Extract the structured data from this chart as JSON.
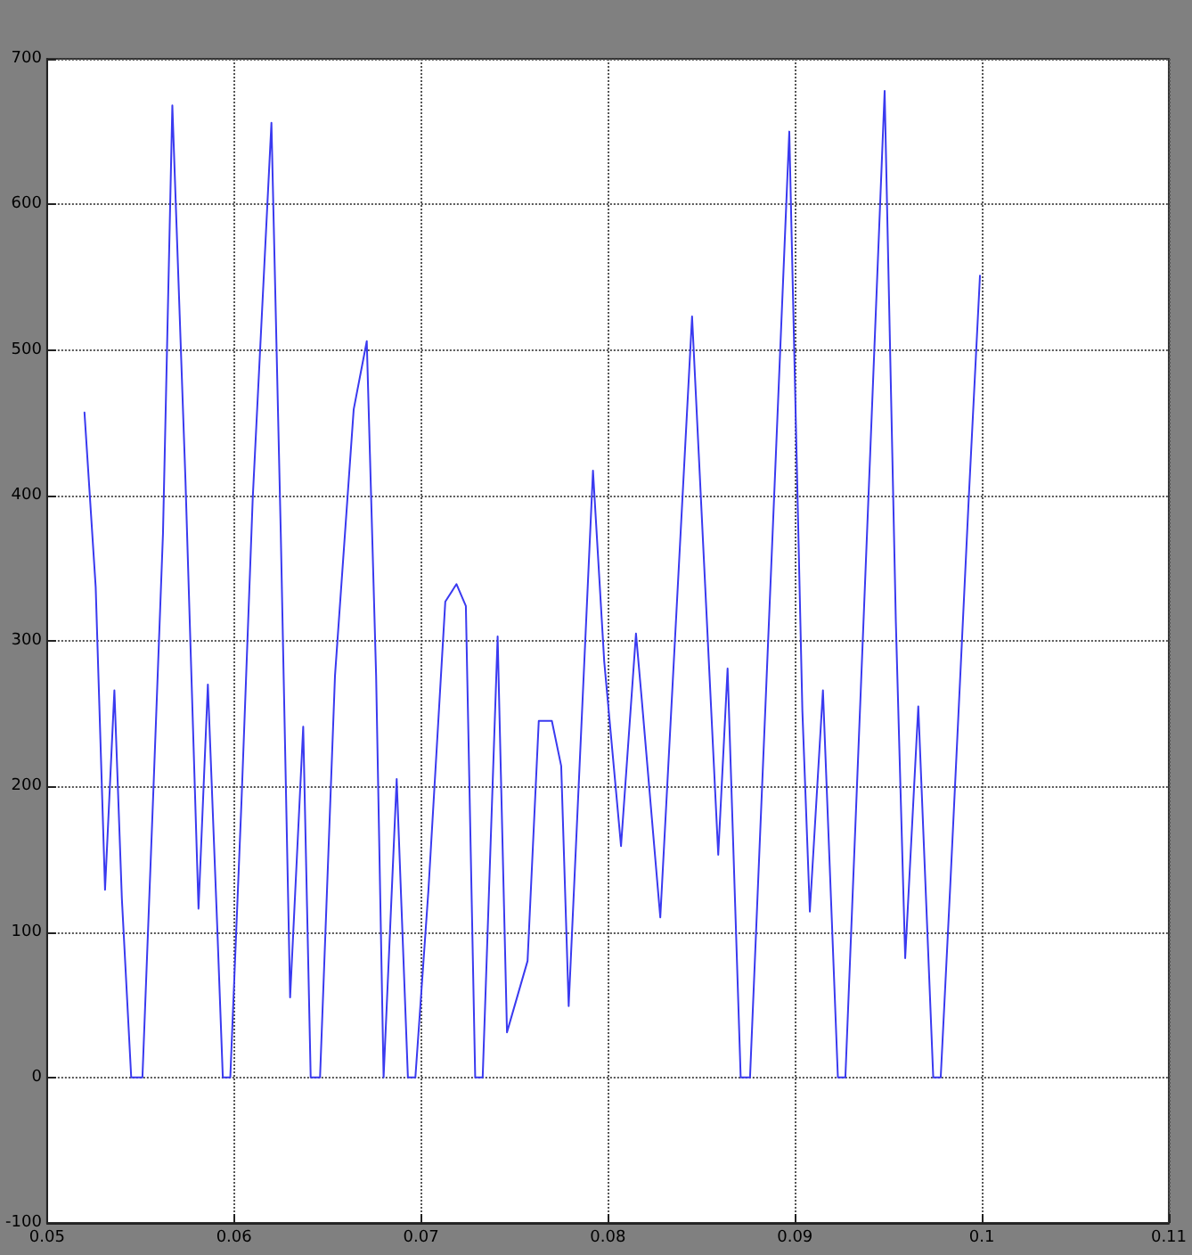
{
  "chart_data": {
    "type": "line",
    "xlim": [
      0.05,
      0.11
    ],
    "xticks": [
      0.05,
      0.06,
      0.07,
      0.08,
      0.09,
      0.1,
      0.11
    ],
    "ylim": [
      -100,
      700
    ],
    "yticks": [
      -100,
      0,
      100,
      200,
      300,
      400,
      500,
      600,
      700
    ],
    "grid": true,
    "marker": "none",
    "line_style": "solid",
    "series": [
      {
        "color": "#3a3af0",
        "x": [
          0.052,
          0.0526,
          0.0531,
          0.0536,
          0.054,
          0.0545,
          0.0551,
          0.0557,
          0.0562,
          0.0567,
          0.0574,
          0.0581,
          0.0586,
          0.0591,
          0.0594,
          0.0598,
          0.0604,
          0.061,
          0.062,
          0.0625,
          0.063,
          0.0637,
          0.0641,
          0.0646,
          0.0654,
          0.0664,
          0.0671,
          0.0676,
          0.068,
          0.0687,
          0.0693,
          0.0697,
          0.0704,
          0.0713,
          0.0719,
          0.0724,
          0.0729,
          0.0733,
          0.0741,
          0.0746,
          0.0757,
          0.0763,
          0.077,
          0.0775,
          0.0779,
          0.0792,
          0.0798,
          0.0807,
          0.0815,
          0.0818,
          0.0828,
          0.0845,
          0.0859,
          0.0864,
          0.0871,
          0.0876,
          0.0897,
          0.0904,
          0.0908,
          0.0915,
          0.0923,
          0.0927,
          0.0948,
          0.0954,
          0.0959,
          0.0966,
          0.0974,
          0.0978,
          0.0983,
          0.0993,
          0.0999
        ],
        "values": [
          457,
          337,
          129,
          266,
          123,
          0,
          0,
          202,
          374,
          668,
          411,
          116,
          270,
          104,
          0,
          0,
          190,
          398,
          656,
          374,
          55,
          241,
          0,
          0,
          276,
          459,
          506,
          276,
          0,
          205,
          0,
          0,
          129,
          327,
          339,
          324,
          0,
          0,
          303,
          31,
          80,
          245,
          245,
          214,
          49,
          417,
          286,
          159,
          305,
          261,
          110,
          523,
          153,
          281,
          0,
          0,
          650,
          252,
          114,
          266,
          0,
          0,
          678,
          313,
          82,
          255,
          0,
          0,
          129,
          398,
          551
        ]
      }
    ]
  }
}
